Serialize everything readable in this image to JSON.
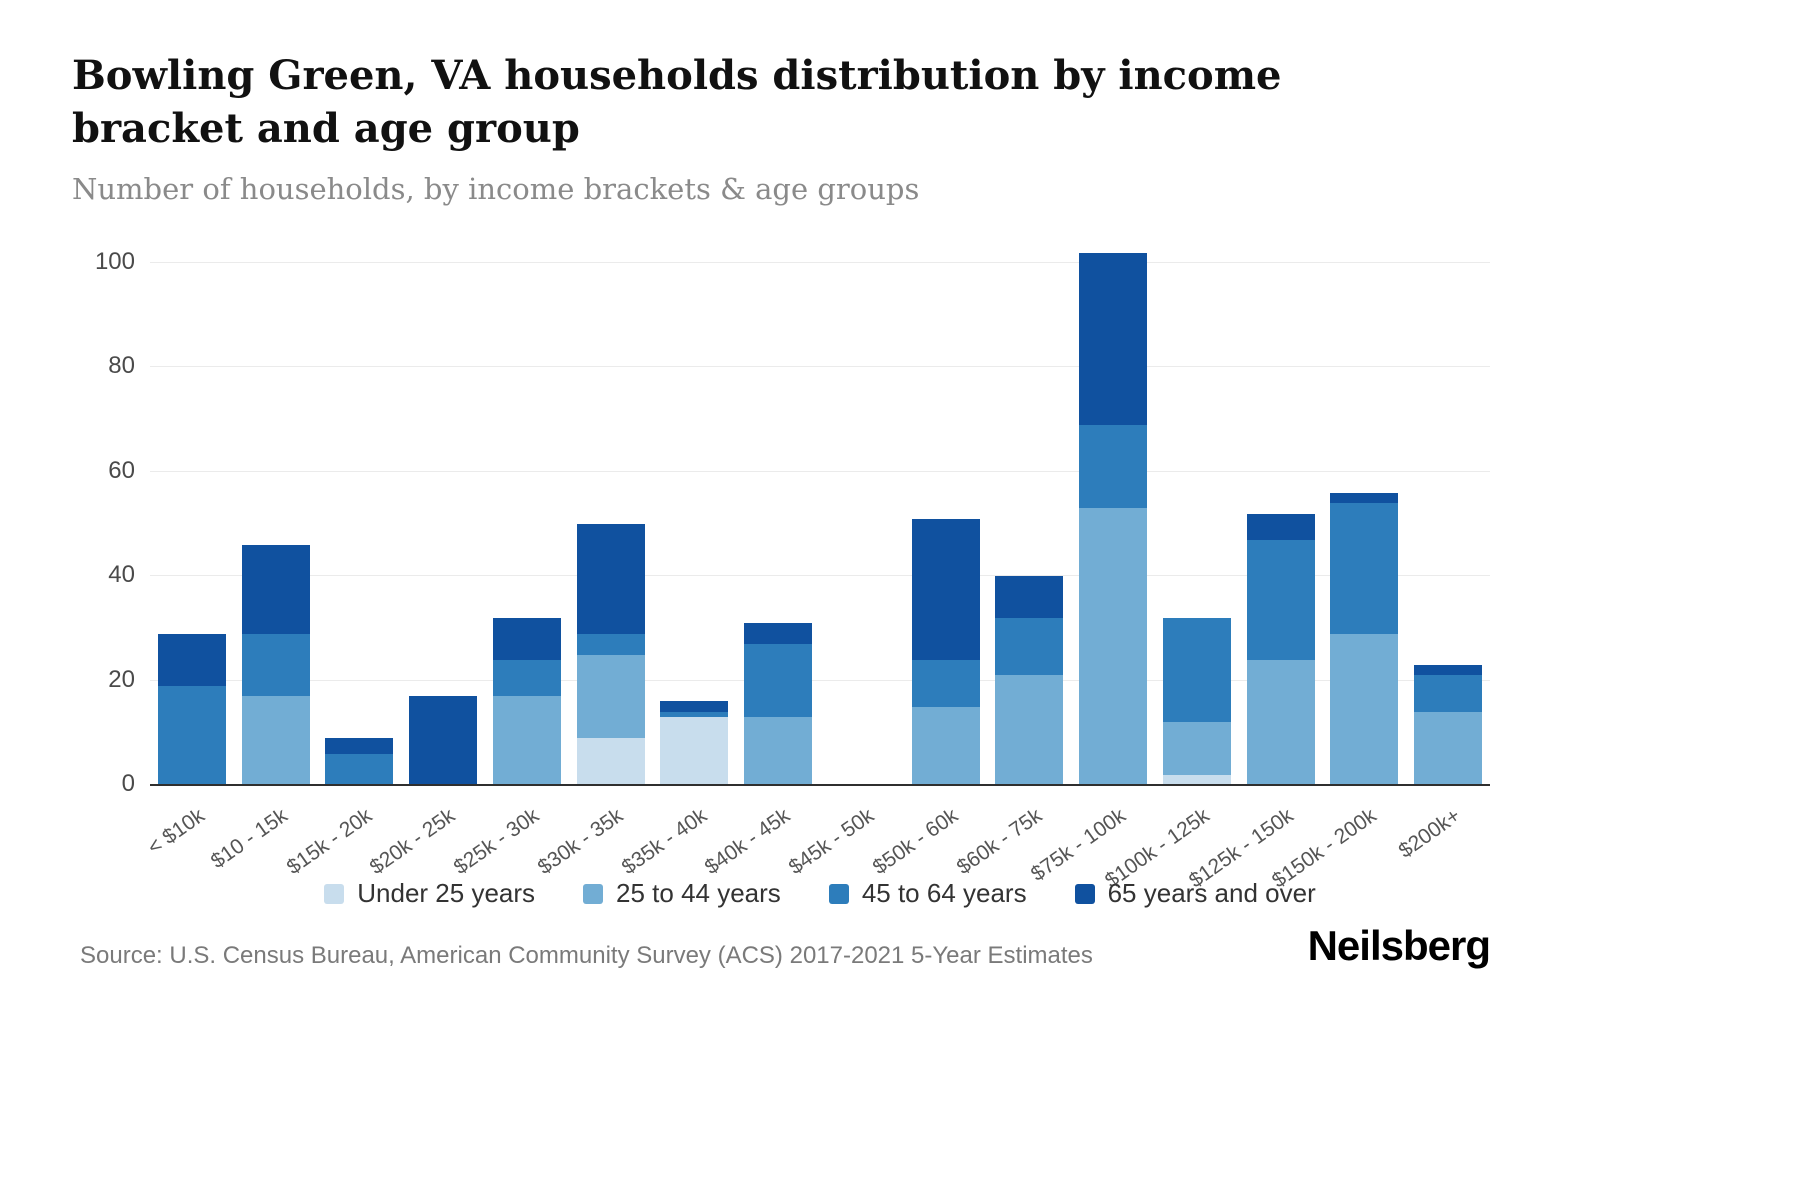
{
  "header": {
    "title": "Bowling Green, VA households distribution by income bracket and age group",
    "subtitle": "Number of households, by income brackets & age groups"
  },
  "chart_data": {
    "type": "bar",
    "variant": "stacked",
    "title": "Bowling Green, VA households distribution by income bracket and age group",
    "subtitle": "Number of households, by income brackets & age groups",
    "xlabel": "",
    "ylabel": "",
    "ylim": [
      0,
      100
    ],
    "yticks": [
      0,
      20,
      40,
      60,
      80,
      100
    ],
    "grid": true,
    "legend_position": "bottom",
    "categories": [
      "< $10k",
      "$10 - 15k",
      "$15k - 20k",
      "$20k - 25k",
      "$25k - 30k",
      "$30k - 35k",
      "$35k - 40k",
      "$40k - 45k",
      "$45k - 50k",
      "$50k - 60k",
      "$60k - 75k",
      "$75k - 100k",
      "$100k - 125k",
      "$125k - 150k",
      "$150k - 200k",
      "$200k+"
    ],
    "series": [
      {
        "name": "Under 25 years",
        "color": "#c8dded",
        "values": [
          0,
          0,
          0,
          0,
          0,
          9,
          13,
          0,
          0,
          0,
          0,
          0,
          2,
          0,
          0,
          0
        ]
      },
      {
        "name": "25 to 44 years",
        "color": "#72add4",
        "values": [
          0,
          17,
          0,
          0,
          17,
          16,
          0,
          13,
          0,
          15,
          21,
          53,
          10,
          24,
          29,
          14
        ]
      },
      {
        "name": "45 to 64 years",
        "color": "#2d7dbb",
        "values": [
          19,
          12,
          6,
          0,
          7,
          4,
          1,
          14,
          0,
          9,
          11,
          16,
          20,
          23,
          25,
          7
        ]
      },
      {
        "name": "65 years and over",
        "color": "#10519f",
        "values": [
          10,
          17,
          3,
          17,
          8,
          21,
          2,
          4,
          0,
          27,
          8,
          33,
          0,
          5,
          2,
          2
        ]
      }
    ],
    "totals": [
      29,
      46,
      9,
      17,
      32,
      50,
      16,
      31,
      0,
      51,
      40,
      102,
      32,
      52,
      56,
      23
    ]
  },
  "footer": {
    "source": "Source: U.S. Census Bureau, American Community Survey (ACS) 2017-2021 5-Year Estimates",
    "brand": "Neilsberg"
  }
}
